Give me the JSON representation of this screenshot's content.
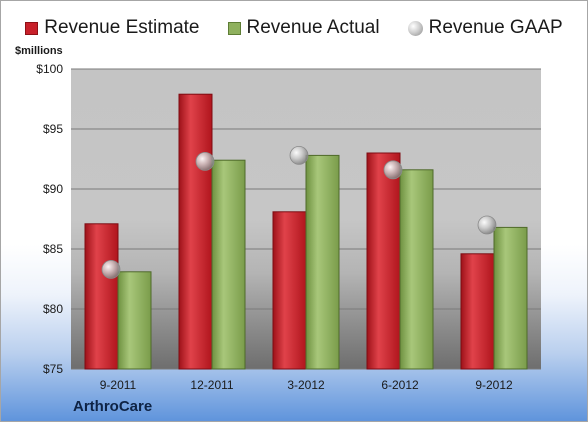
{
  "colors": {
    "estimate": "#c8202a",
    "actual": "#8fb15e",
    "gaap": "#b0b0b0"
  },
  "chart_data": {
    "type": "bar",
    "ylabel": "$millions",
    "company": "ArthroCare",
    "categories": [
      "9-2011",
      "12-2011",
      "3-2012",
      "6-2012",
      "9-2012"
    ],
    "series": [
      {
        "name": "Revenue Estimate",
        "kind": "bar",
        "values": [
          87.1,
          97.9,
          88.1,
          93.0,
          84.6
        ]
      },
      {
        "name": "Revenue Actual",
        "kind": "bar",
        "values": [
          83.1,
          92.4,
          92.8,
          91.6,
          86.8
        ]
      },
      {
        "name": "Revenue GAAP",
        "kind": "point",
        "values": [
          83.3,
          92.3,
          92.8,
          91.6,
          87.0
        ]
      }
    ],
    "ylim": [
      75,
      100
    ],
    "yticks": [
      75,
      80,
      85,
      90,
      95,
      100
    ],
    "ytick_labels": [
      "$75",
      "$80",
      "$85",
      "$90",
      "$95",
      "$100"
    ],
    "grid": true,
    "legend_position": "top"
  }
}
